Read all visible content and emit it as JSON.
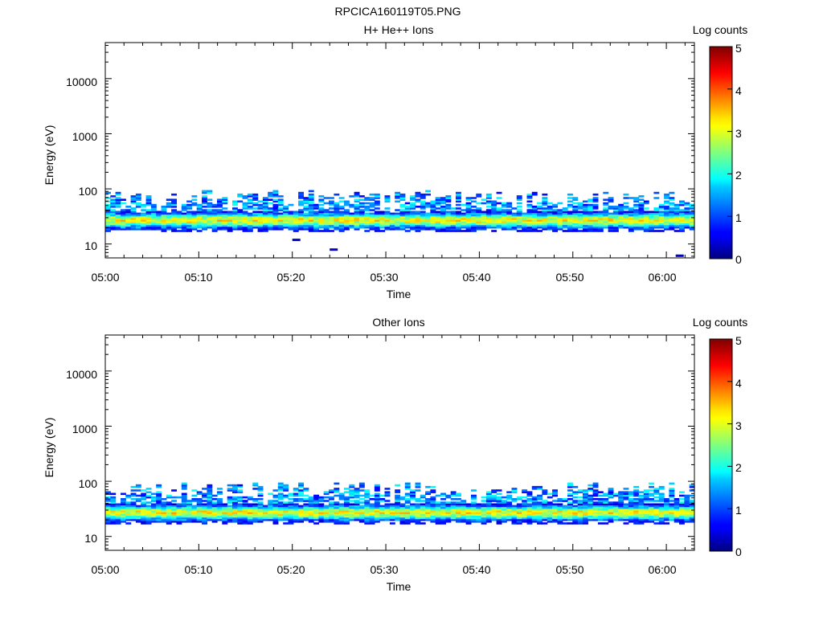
{
  "figure_title": "RPCICA160119T05.PNG",
  "chart_data": [
    {
      "type": "heatmap",
      "title": "H+ He++ Ions",
      "xlabel": "Time",
      "ylabel": "Energy (eV)",
      "x_tick_labels": [
        "05:00",
        "05:10",
        "05:20",
        "05:30",
        "05:40",
        "05:50",
        "06:00"
      ],
      "x_range": [
        "05:00",
        "06:03"
      ],
      "y_scale": "log",
      "y_range": [
        5.6,
        45000
      ],
      "y_tick_labels": [
        "10",
        "100",
        "1000",
        "10000"
      ],
      "colorbar": {
        "label": "Log counts",
        "range": [
          0,
          5
        ],
        "tick_labels": [
          "0",
          "1",
          "2",
          "3",
          "4",
          "5"
        ]
      },
      "energy_band": {
        "min": 17,
        "max": 95
      },
      "description_of_values": "Counts concentrated between ~17 and ~95 eV across the whole interval; peak log counts about 3-3.6 near 25-35 eV; sporadic isolated pixels near 12 eV at 05:20 and 8 eV at 05:24",
      "seed": 1
    },
    {
      "type": "heatmap",
      "title": "Other Ions",
      "xlabel": "Time",
      "ylabel": "Energy (eV)",
      "x_tick_labels": [
        "05:00",
        "05:10",
        "05:20",
        "05:30",
        "05:40",
        "05:50",
        "06:00"
      ],
      "x_range": [
        "05:00",
        "06:03"
      ],
      "y_scale": "log",
      "y_range": [
        5.6,
        45000
      ],
      "y_tick_labels": [
        "10",
        "100",
        "1000",
        "10000"
      ],
      "colorbar": {
        "label": "Log counts",
        "range": [
          0,
          5
        ],
        "tick_labels": [
          "0",
          "1",
          "2",
          "3",
          "4",
          "5"
        ]
      },
      "energy_band": {
        "min": 17,
        "max": 95
      },
      "description_of_values": "Very similar distribution to the H+ He++ panel, counts between ~17 and ~95 eV, peak log counts about 3-3.6",
      "seed": 2
    }
  ]
}
